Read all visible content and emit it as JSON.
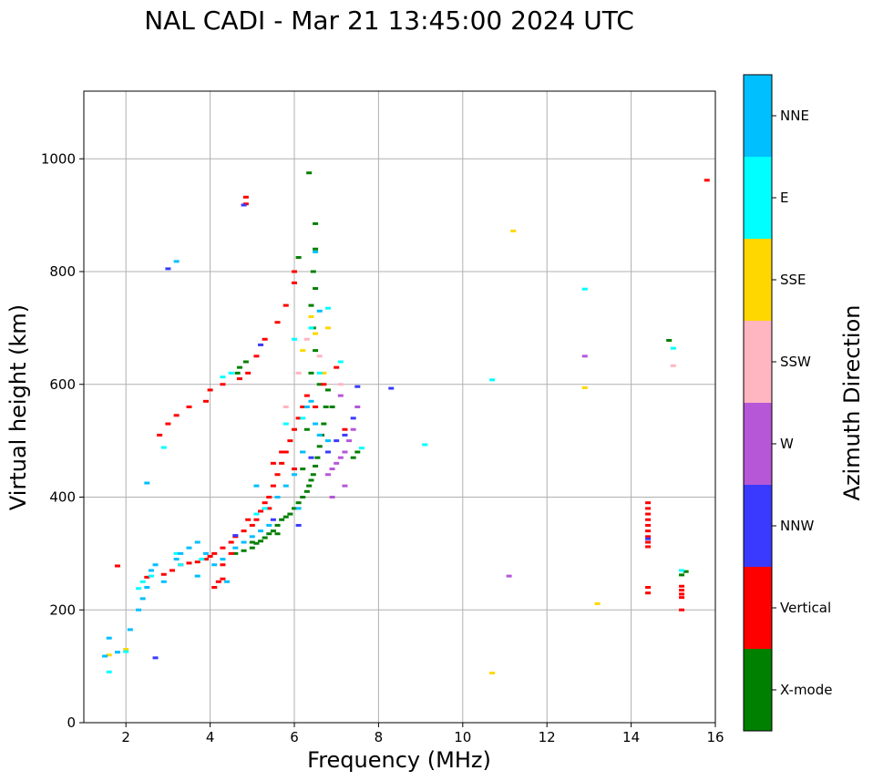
{
  "chart_data": {
    "type": "scatter",
    "title": "NAL CADI - Mar 21 13:45:00 2024 UTC",
    "xlabel": "Frequency (MHz)",
    "ylabel": "Virtual height (km)",
    "xlim": [
      1,
      16
    ],
    "ylim": [
      0,
      1120
    ],
    "xticks": [
      2,
      4,
      6,
      8,
      10,
      12,
      14,
      16
    ],
    "yticks": [
      0,
      200,
      400,
      600,
      800,
      1000
    ],
    "grid": true,
    "colorbar": {
      "label": "Azimuth Direction",
      "entries": [
        {
          "name": "X-mode",
          "color": "#008000"
        },
        {
          "name": "Vertical",
          "color": "#ff0000"
        },
        {
          "name": "NNW",
          "color": "#3a3aff"
        },
        {
          "name": "W",
          "color": "#b557d7"
        },
        {
          "name": "SSW",
          "color": "#ffb6c1"
        },
        {
          "name": "SSE",
          "color": "#ffd700"
        },
        {
          "name": "E",
          "color": "#00ffff"
        },
        {
          "name": "NNE",
          "color": "#00bfff"
        }
      ]
    },
    "series": [
      {
        "name": "X-mode",
        "color": "#008000",
        "points": [
          [
            4.6,
            300
          ],
          [
            4.8,
            305
          ],
          [
            5.0,
            310
          ],
          [
            5.1,
            318
          ],
          [
            5.2,
            322
          ],
          [
            5.3,
            328
          ],
          [
            5.4,
            335
          ],
          [
            5.5,
            340
          ],
          [
            5.6,
            350
          ],
          [
            5.7,
            360
          ],
          [
            5.8,
            365
          ],
          [
            5.9,
            370
          ],
          [
            6.0,
            380
          ],
          [
            6.1,
            390
          ],
          [
            6.2,
            400
          ],
          [
            6.3,
            410
          ],
          [
            6.35,
            420
          ],
          [
            6.4,
            430
          ],
          [
            6.45,
            440
          ],
          [
            6.5,
            455
          ],
          [
            6.55,
            470
          ],
          [
            6.6,
            490
          ],
          [
            6.65,
            510
          ],
          [
            6.7,
            530
          ],
          [
            6.75,
            560
          ],
          [
            6.8,
            590
          ],
          [
            6.4,
            620
          ],
          [
            6.5,
            660
          ],
          [
            6.45,
            700
          ],
          [
            6.4,
            740
          ],
          [
            6.5,
            770
          ],
          [
            6.45,
            800
          ],
          [
            6.5,
            840
          ],
          [
            6.5,
            885
          ],
          [
            6.35,
            975
          ],
          [
            4.7,
            630
          ],
          [
            4.65,
            620
          ],
          [
            4.85,
            640
          ],
          [
            6.1,
            825
          ],
          [
            5.6,
            335
          ],
          [
            5.0,
            320
          ],
          [
            6.6,
            600
          ],
          [
            6.2,
            450
          ],
          [
            14.9,
            678
          ],
          [
            15.2,
            262
          ],
          [
            15.3,
            268
          ],
          [
            7.5,
            480
          ],
          [
            7.4,
            470
          ],
          [
            6.9,
            560
          ],
          [
            6.3,
            520
          ]
        ]
      },
      {
        "name": "Vertical",
        "color": "#ff0000",
        "points": [
          [
            1.8,
            278
          ],
          [
            2.5,
            258
          ],
          [
            2.9,
            263
          ],
          [
            3.1,
            270
          ],
          [
            3.3,
            280
          ],
          [
            3.5,
            283
          ],
          [
            3.7,
            285
          ],
          [
            3.9,
            290
          ],
          [
            4.0,
            295
          ],
          [
            4.1,
            300
          ],
          [
            4.3,
            310
          ],
          [
            4.5,
            320
          ],
          [
            4.6,
            330
          ],
          [
            4.8,
            340
          ],
          [
            5.0,
            350
          ],
          [
            5.1,
            360
          ],
          [
            5.2,
            375
          ],
          [
            5.3,
            390
          ],
          [
            5.4,
            400
          ],
          [
            5.5,
            420
          ],
          [
            5.6,
            440
          ],
          [
            5.7,
            460
          ],
          [
            5.8,
            480
          ],
          [
            5.9,
            500
          ],
          [
            6.0,
            520
          ],
          [
            6.1,
            540
          ],
          [
            6.2,
            560
          ],
          [
            6.3,
            580
          ],
          [
            4.1,
            240
          ],
          [
            4.2,
            250
          ],
          [
            4.3,
            255
          ],
          [
            2.8,
            510
          ],
          [
            3.0,
            530
          ],
          [
            3.2,
            545
          ],
          [
            3.5,
            560
          ],
          [
            3.9,
            570
          ],
          [
            4.0,
            590
          ],
          [
            4.3,
            600
          ],
          [
            4.7,
            610
          ],
          [
            4.9,
            620
          ],
          [
            5.1,
            650
          ],
          [
            5.3,
            680
          ],
          [
            5.6,
            710
          ],
          [
            5.8,
            740
          ],
          [
            6.0,
            780
          ],
          [
            6.0,
            800
          ],
          [
            4.85,
            920
          ],
          [
            4.85,
            932
          ],
          [
            4.3,
            280
          ],
          [
            4.5,
            300
          ],
          [
            4.9,
            360
          ],
          [
            5.4,
            380
          ],
          [
            5.5,
            460
          ],
          [
            5.7,
            480
          ],
          [
            6.0,
            450
          ],
          [
            6.2,
            480
          ],
          [
            6.5,
            560
          ],
          [
            6.7,
            600
          ],
          [
            7.0,
            630
          ],
          [
            7.2,
            520
          ],
          [
            14.4,
            390
          ],
          [
            14.4,
            380
          ],
          [
            14.4,
            370
          ],
          [
            14.4,
            360
          ],
          [
            14.4,
            350
          ],
          [
            14.4,
            340
          ],
          [
            14.4,
            330
          ],
          [
            14.4,
            320
          ],
          [
            14.4,
            312
          ],
          [
            14.4,
            240
          ],
          [
            14.4,
            230
          ],
          [
            15.2,
            242
          ],
          [
            15.2,
            235
          ],
          [
            15.2,
            228
          ],
          [
            15.2,
            222
          ],
          [
            15.2,
            200
          ],
          [
            15.8,
            962
          ]
        ]
      },
      {
        "name": "NNW",
        "color": "#3a3aff",
        "points": [
          [
            2.7,
            115
          ],
          [
            3.0,
            805
          ],
          [
            4.8,
            918
          ],
          [
            5.2,
            670
          ],
          [
            6.1,
            350
          ],
          [
            6.4,
            470
          ],
          [
            6.8,
            480
          ],
          [
            7.0,
            500
          ],
          [
            7.2,
            510
          ],
          [
            7.4,
            540
          ],
          [
            7.5,
            596
          ],
          [
            8.3,
            593
          ],
          [
            14.4,
            326
          ],
          [
            4.6,
            332
          ],
          [
            5.5,
            360
          ]
        ]
      },
      {
        "name": "W",
        "color": "#b557d7",
        "points": [
          [
            6.8,
            440
          ],
          [
            6.9,
            450
          ],
          [
            7.0,
            460
          ],
          [
            7.1,
            470
          ],
          [
            7.2,
            480
          ],
          [
            7.3,
            500
          ],
          [
            7.4,
            520
          ],
          [
            7.5,
            560
          ],
          [
            7.2,
            420
          ],
          [
            6.9,
            400
          ],
          [
            7.1,
            580
          ],
          [
            11.1,
            260
          ],
          [
            12.9,
            650
          ]
        ]
      },
      {
        "name": "SSW",
        "color": "#ffb6c1",
        "points": [
          [
            6.3,
            680
          ],
          [
            6.6,
            650
          ],
          [
            7.1,
            600
          ],
          [
            15.0,
            633
          ],
          [
            5.8,
            560
          ],
          [
            6.1,
            620
          ]
        ]
      },
      {
        "name": "SSE",
        "color": "#ffd700",
        "points": [
          [
            1.6,
            120
          ],
          [
            2.0,
            130
          ],
          [
            6.2,
            660
          ],
          [
            6.5,
            690
          ],
          [
            6.8,
            700
          ],
          [
            10.7,
            88
          ],
          [
            11.2,
            872
          ],
          [
            12.9,
            594
          ],
          [
            13.2,
            211
          ],
          [
            6.7,
            620
          ],
          [
            6.4,
            720
          ]
        ]
      },
      {
        "name": "E",
        "color": "#00ffff",
        "points": [
          [
            1.6,
            90
          ],
          [
            2.0,
            126
          ],
          [
            2.3,
            238
          ],
          [
            2.6,
            260
          ],
          [
            2.9,
            488
          ],
          [
            3.3,
            280
          ],
          [
            3.8,
            290
          ],
          [
            4.3,
            613
          ],
          [
            4.5,
            620
          ],
          [
            5.1,
            370
          ],
          [
            5.3,
            380
          ],
          [
            5.8,
            530
          ],
          [
            6.0,
            680
          ],
          [
            6.4,
            700
          ],
          [
            6.6,
            620
          ],
          [
            6.8,
            735
          ],
          [
            7.1,
            640
          ],
          [
            7.6,
            487
          ],
          [
            9.1,
            493
          ],
          [
            10.7,
            608
          ],
          [
            12.9,
            769
          ],
          [
            15.0,
            664
          ],
          [
            15.2,
            270
          ],
          [
            2.4,
            250
          ],
          [
            3.2,
            300
          ],
          [
            6.2,
            540
          ]
        ]
      },
      {
        "name": "NNE",
        "color": "#00bfff",
        "points": [
          [
            1.5,
            118
          ],
          [
            1.6,
            150
          ],
          [
            1.8,
            125
          ],
          [
            2.1,
            165
          ],
          [
            2.3,
            200
          ],
          [
            2.4,
            220
          ],
          [
            2.5,
            240
          ],
          [
            2.6,
            270
          ],
          [
            2.7,
            280
          ],
          [
            2.9,
            250
          ],
          [
            3.2,
            290
          ],
          [
            3.3,
            300
          ],
          [
            3.5,
            310
          ],
          [
            3.7,
            320
          ],
          [
            3.9,
            300
          ],
          [
            4.1,
            280
          ],
          [
            4.3,
            290
          ],
          [
            4.6,
            310
          ],
          [
            4.8,
            320
          ],
          [
            5.0,
            330
          ],
          [
            5.2,
            340
          ],
          [
            5.4,
            350
          ],
          [
            5.6,
            400
          ],
          [
            5.8,
            420
          ],
          [
            6.0,
            440
          ],
          [
            6.2,
            480
          ],
          [
            6.3,
            560
          ],
          [
            6.4,
            570
          ],
          [
            6.5,
            530
          ],
          [
            6.6,
            510
          ],
          [
            6.8,
            500
          ],
          [
            6.5,
            835
          ],
          [
            6.6,
            730
          ],
          [
            3.2,
            818
          ],
          [
            3.7,
            260
          ],
          [
            4.4,
            250
          ],
          [
            5.1,
            420
          ],
          [
            6.1,
            380
          ],
          [
            2.5,
            425
          ]
        ]
      }
    ]
  }
}
